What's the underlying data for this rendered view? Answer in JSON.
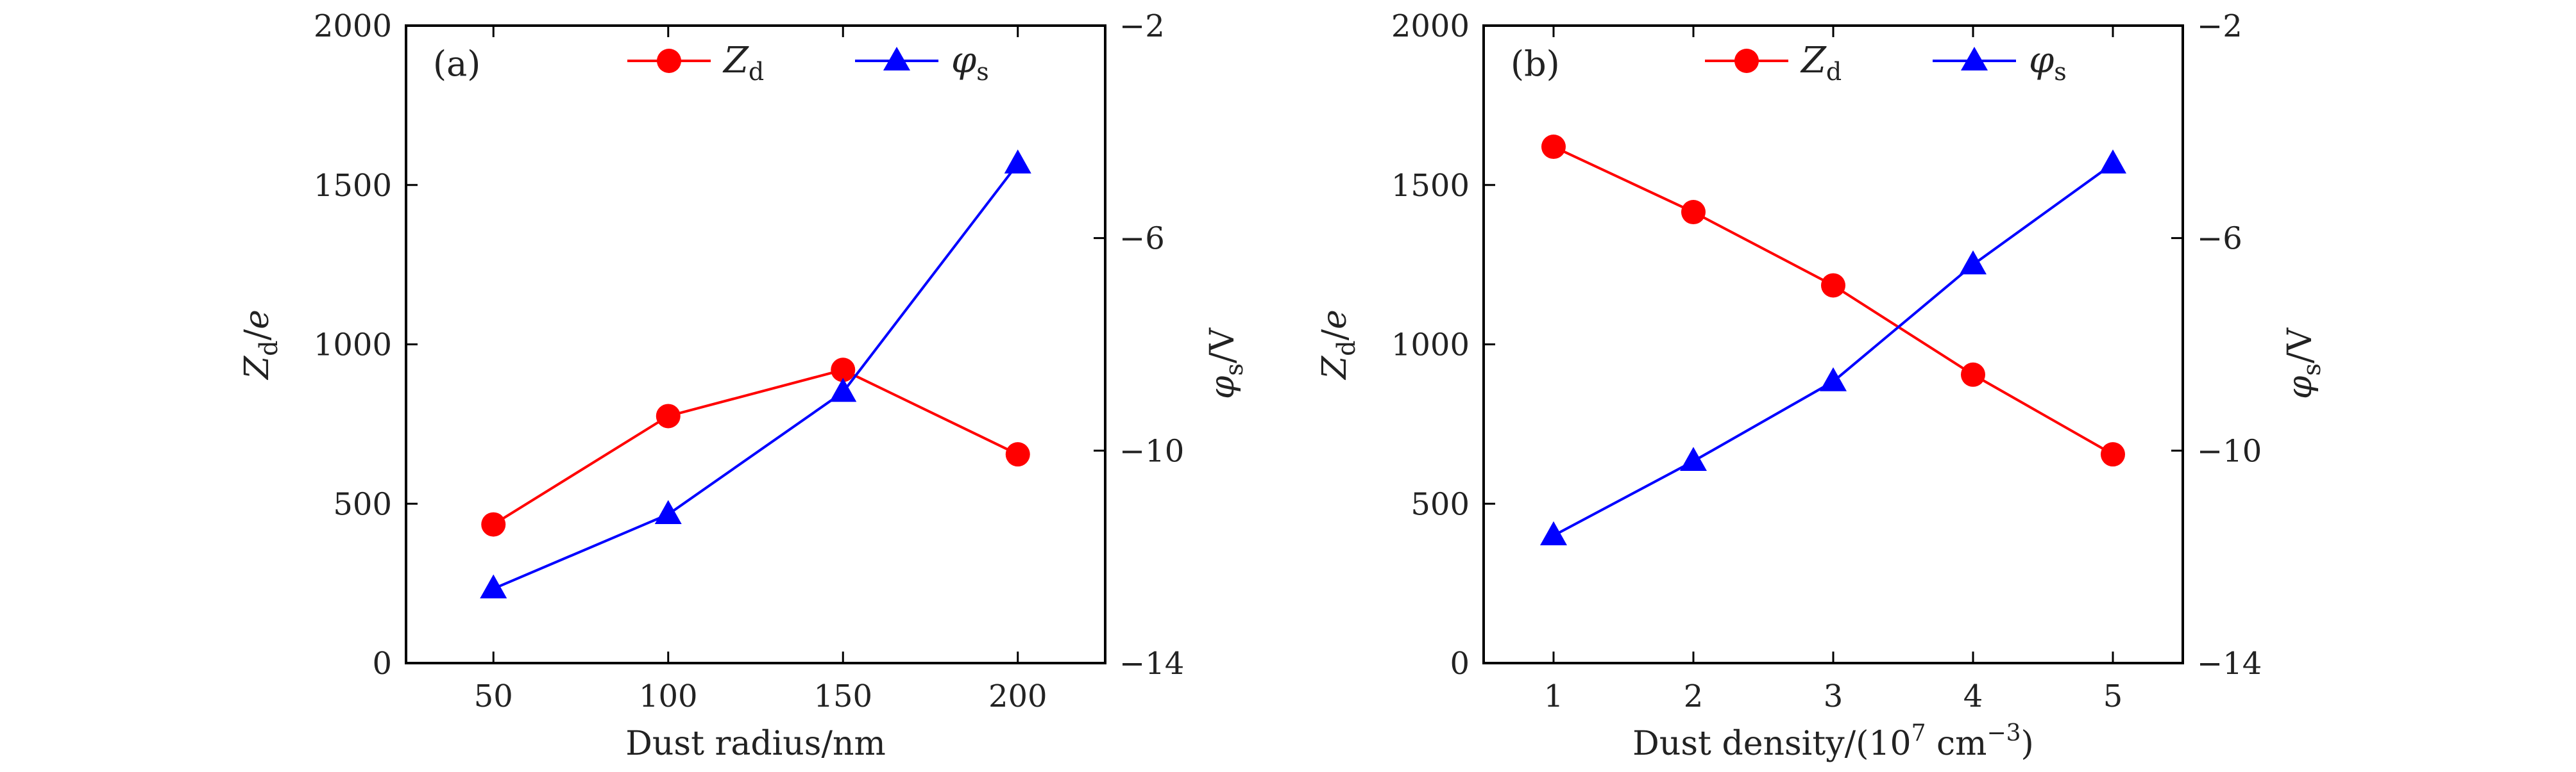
{
  "colors": {
    "zd": "#ff0000",
    "phi": "#0000ff",
    "frame": "#000000",
    "text": "#222222"
  },
  "chart_data": [
    {
      "type": "line",
      "panel_label": "(a)",
      "xlabel": "Dust radius/nm",
      "ylabel_left": {
        "main": "Z",
        "sub": "d",
        "tail": "/",
        "unit": "e"
      },
      "ylabel_right": {
        "main": "φ",
        "sub": "s",
        "tail": "/V"
      },
      "x": [
        50,
        100,
        150,
        200
      ],
      "x_ticks": [
        "50",
        "100",
        "150",
        "200"
      ],
      "xlim": [
        25,
        225
      ],
      "ylim_left": [
        0,
        2000
      ],
      "y_ticks_left": [
        "0",
        "500",
        "1000",
        "1500",
        "2000"
      ],
      "y_tick_values_left": [
        0,
        500,
        1000,
        1500,
        2000
      ],
      "ylim_right": [
        -14,
        -2
      ],
      "y_ticks_right": [
        "−14",
        "−10",
        "−6",
        "−2"
      ],
      "y_tick_values_right": [
        -14,
        -10,
        -6,
        -2
      ],
      "grid": false,
      "legend_position": "top-center",
      "series": [
        {
          "name": "Z",
          "name_sub": "d",
          "axis": "left",
          "marker": "circle",
          "values": [
            435,
            775,
            920,
            655
          ]
        },
        {
          "name": "φ",
          "name_sub": "s",
          "axis": "right",
          "marker": "triangle",
          "values": [
            -12.6,
            -11.2,
            -8.9,
            -4.6
          ]
        }
      ]
    },
    {
      "type": "line",
      "panel_label": "(b)",
      "xlabel": "Dust density/(10",
      "xlabel_sup": "7",
      "xlabel_mid": " cm",
      "xlabel_sup2": "−3",
      "xlabel_end": ")",
      "ylabel_left": {
        "main": "Z",
        "sub": "d",
        "tail": "/",
        "unit": "e"
      },
      "ylabel_right": {
        "main": "φ",
        "sub": "s",
        "tail": "/V"
      },
      "x": [
        1,
        2,
        3,
        4,
        5
      ],
      "x_ticks": [
        "1",
        "2",
        "3",
        "4",
        "5"
      ],
      "xlim": [
        0.5,
        5.5
      ],
      "ylim_left": [
        0,
        2000
      ],
      "y_ticks_left": [
        "0",
        "500",
        "1000",
        "1500",
        "2000"
      ],
      "y_tick_values_left": [
        0,
        500,
        1000,
        1500,
        2000
      ],
      "ylim_right": [
        -14,
        -2
      ],
      "y_ticks_right": [
        "−14",
        "−10",
        "−6",
        "−2"
      ],
      "y_tick_values_right": [
        -14,
        -10,
        -6,
        -2
      ],
      "grid": false,
      "legend_position": "top-center",
      "series": [
        {
          "name": "Z",
          "name_sub": "d",
          "axis": "left",
          "marker": "circle",
          "values": [
            1620,
            1415,
            1185,
            905,
            655
          ]
        },
        {
          "name": "φ",
          "name_sub": "s",
          "axis": "right",
          "marker": "triangle",
          "values": [
            -11.6,
            -10.2,
            -8.7,
            -6.5,
            -4.6
          ]
        }
      ]
    }
  ]
}
